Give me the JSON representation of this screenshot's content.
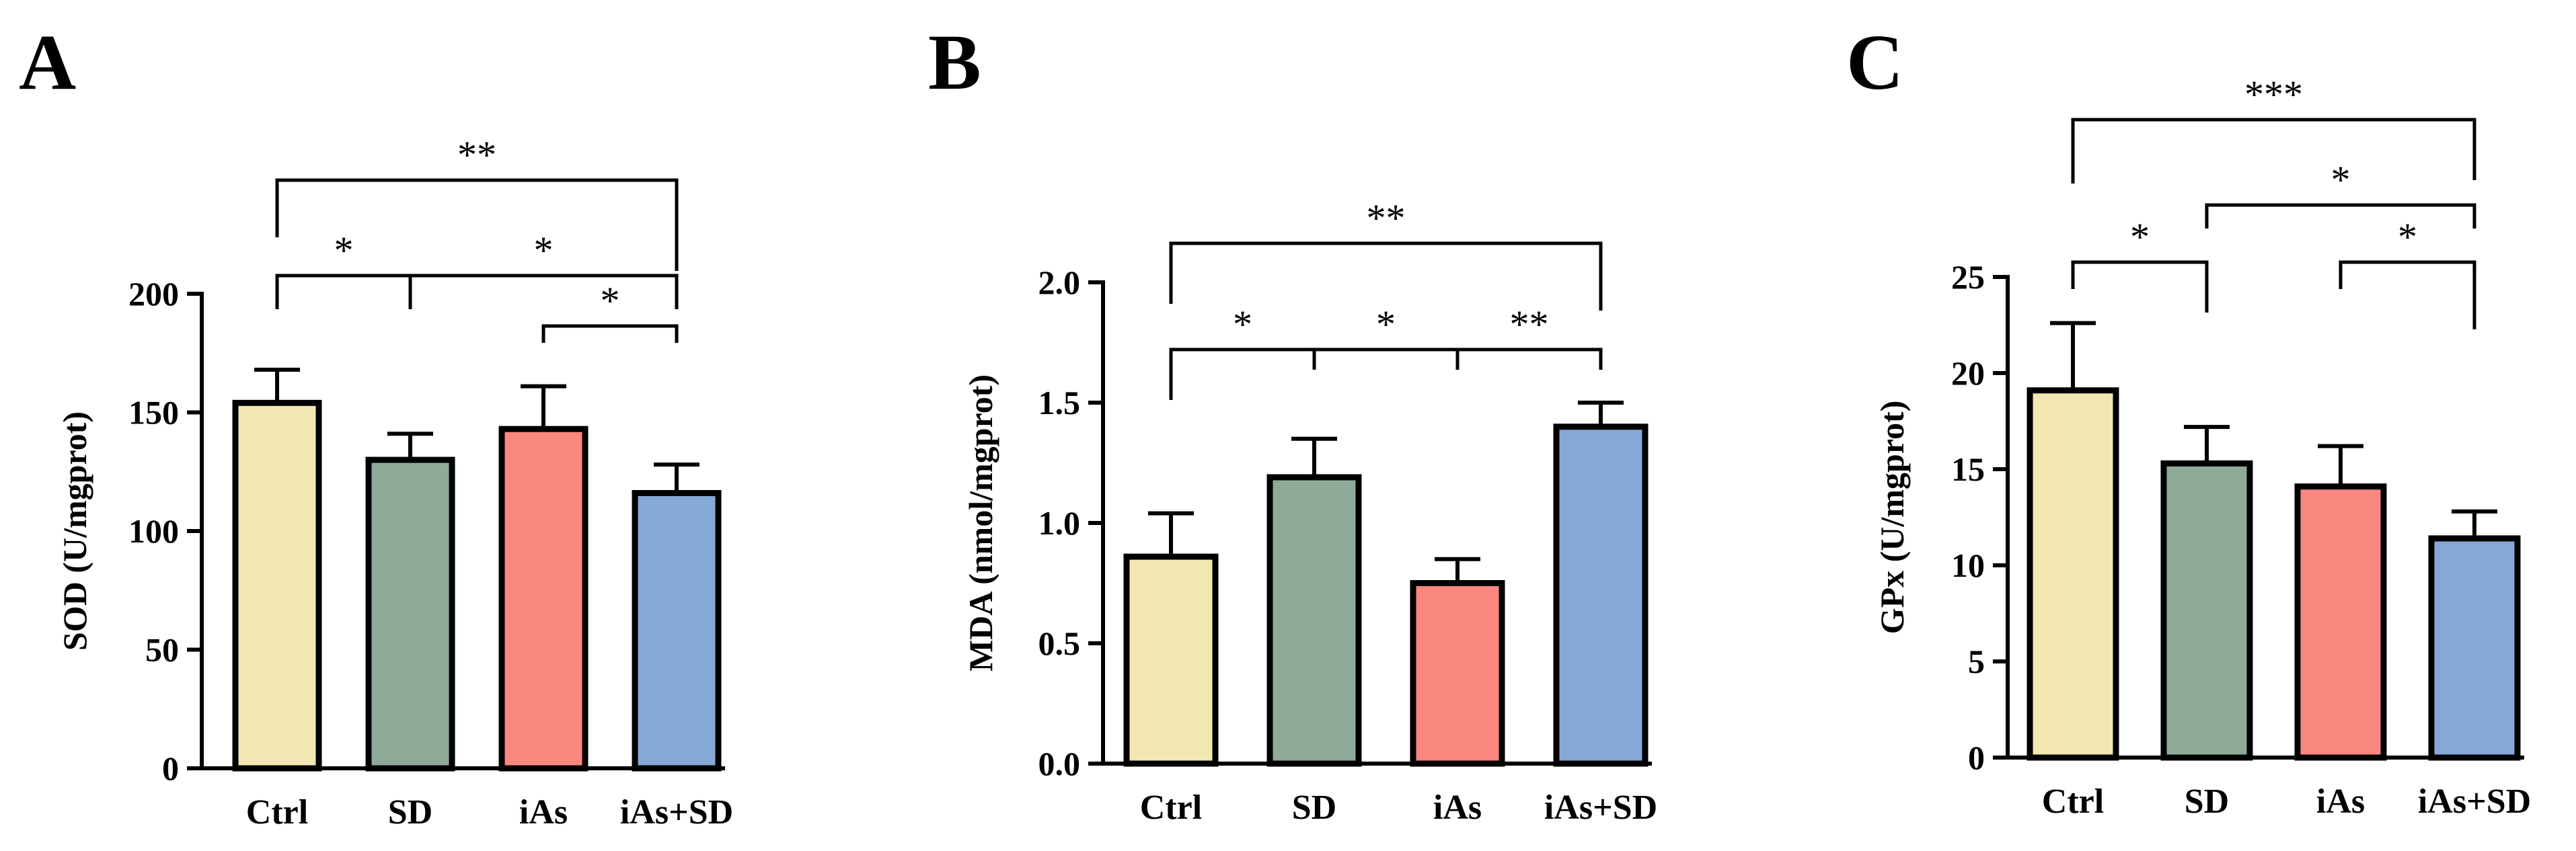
{
  "figure": {
    "panels": [
      {
        "letter": "A"
      },
      {
        "letter": "B"
      },
      {
        "letter": "C"
      }
    ]
  },
  "chart_data": [
    {
      "type": "bar",
      "panel": "A",
      "title": "",
      "xlabel": "",
      "ylabel": "SOD (U/mgprot)",
      "categories": [
        "Ctrl",
        "SD",
        "iAs",
        "iAs+SD"
      ],
      "values": [
        154,
        130,
        143,
        116
      ],
      "errors": [
        14,
        11,
        18,
        12
      ],
      "colors": [
        "#f2e7b0",
        "#8faa98",
        "#fa877e",
        "#86a8d6"
      ],
      "ylim": [
        0,
        200
      ],
      "yticks": [
        0,
        50,
        100,
        150,
        200
      ],
      "significance": [
        {
          "from": 0,
          "to": 3,
          "label": "**"
        },
        {
          "from": 0,
          "to": 1,
          "label": "*"
        },
        {
          "from": 1,
          "to": 3,
          "label": "*"
        },
        {
          "from": 2,
          "to": 3,
          "label": "*"
        }
      ]
    },
    {
      "type": "bar",
      "panel": "B",
      "title": "",
      "xlabel": "",
      "ylabel": "MDA (nmol/mgprot)",
      "categories": [
        "Ctrl",
        "SD",
        "iAs",
        "iAs+SD"
      ],
      "values": [
        0.86,
        1.19,
        0.75,
        1.4
      ],
      "errors": [
        0.18,
        0.16,
        0.1,
        0.1
      ],
      "colors": [
        "#f2e7b0",
        "#8faa98",
        "#fa877e",
        "#86a8d6"
      ],
      "ylim": [
        0,
        2.0
      ],
      "yticks": [
        "0.0",
        "0.5",
        "1.0",
        "1.5",
        "2.0"
      ],
      "significance": [
        {
          "from": 0,
          "to": 3,
          "label": "**"
        },
        {
          "from": 0,
          "to": 1,
          "label": "*"
        },
        {
          "from": 1,
          "to": 2,
          "label": "*"
        },
        {
          "from": 2,
          "to": 3,
          "label": "**"
        }
      ]
    },
    {
      "type": "bar",
      "panel": "C",
      "title": "",
      "xlabel": "",
      "ylabel": "GPx (U/mgprot)",
      "categories": [
        "Ctrl",
        "SD",
        "iAs",
        "iAs+SD"
      ],
      "values": [
        19.1,
        15.3,
        14.1,
        11.4
      ],
      "errors": [
        3.5,
        1.9,
        2.1,
        1.4
      ],
      "colors": [
        "#f2e7b0",
        "#8faa98",
        "#fa877e",
        "#86a8d6"
      ],
      "ylim": [
        0,
        25
      ],
      "yticks": [
        0,
        5,
        10,
        15,
        20,
        25
      ],
      "significance": [
        {
          "from": 0,
          "to": 3,
          "label": "***"
        },
        {
          "from": 1,
          "to": 3,
          "label": "*"
        },
        {
          "from": 0,
          "to": 1,
          "label": "*"
        },
        {
          "from": 2,
          "to": 3,
          "label": "*"
        }
      ]
    }
  ]
}
